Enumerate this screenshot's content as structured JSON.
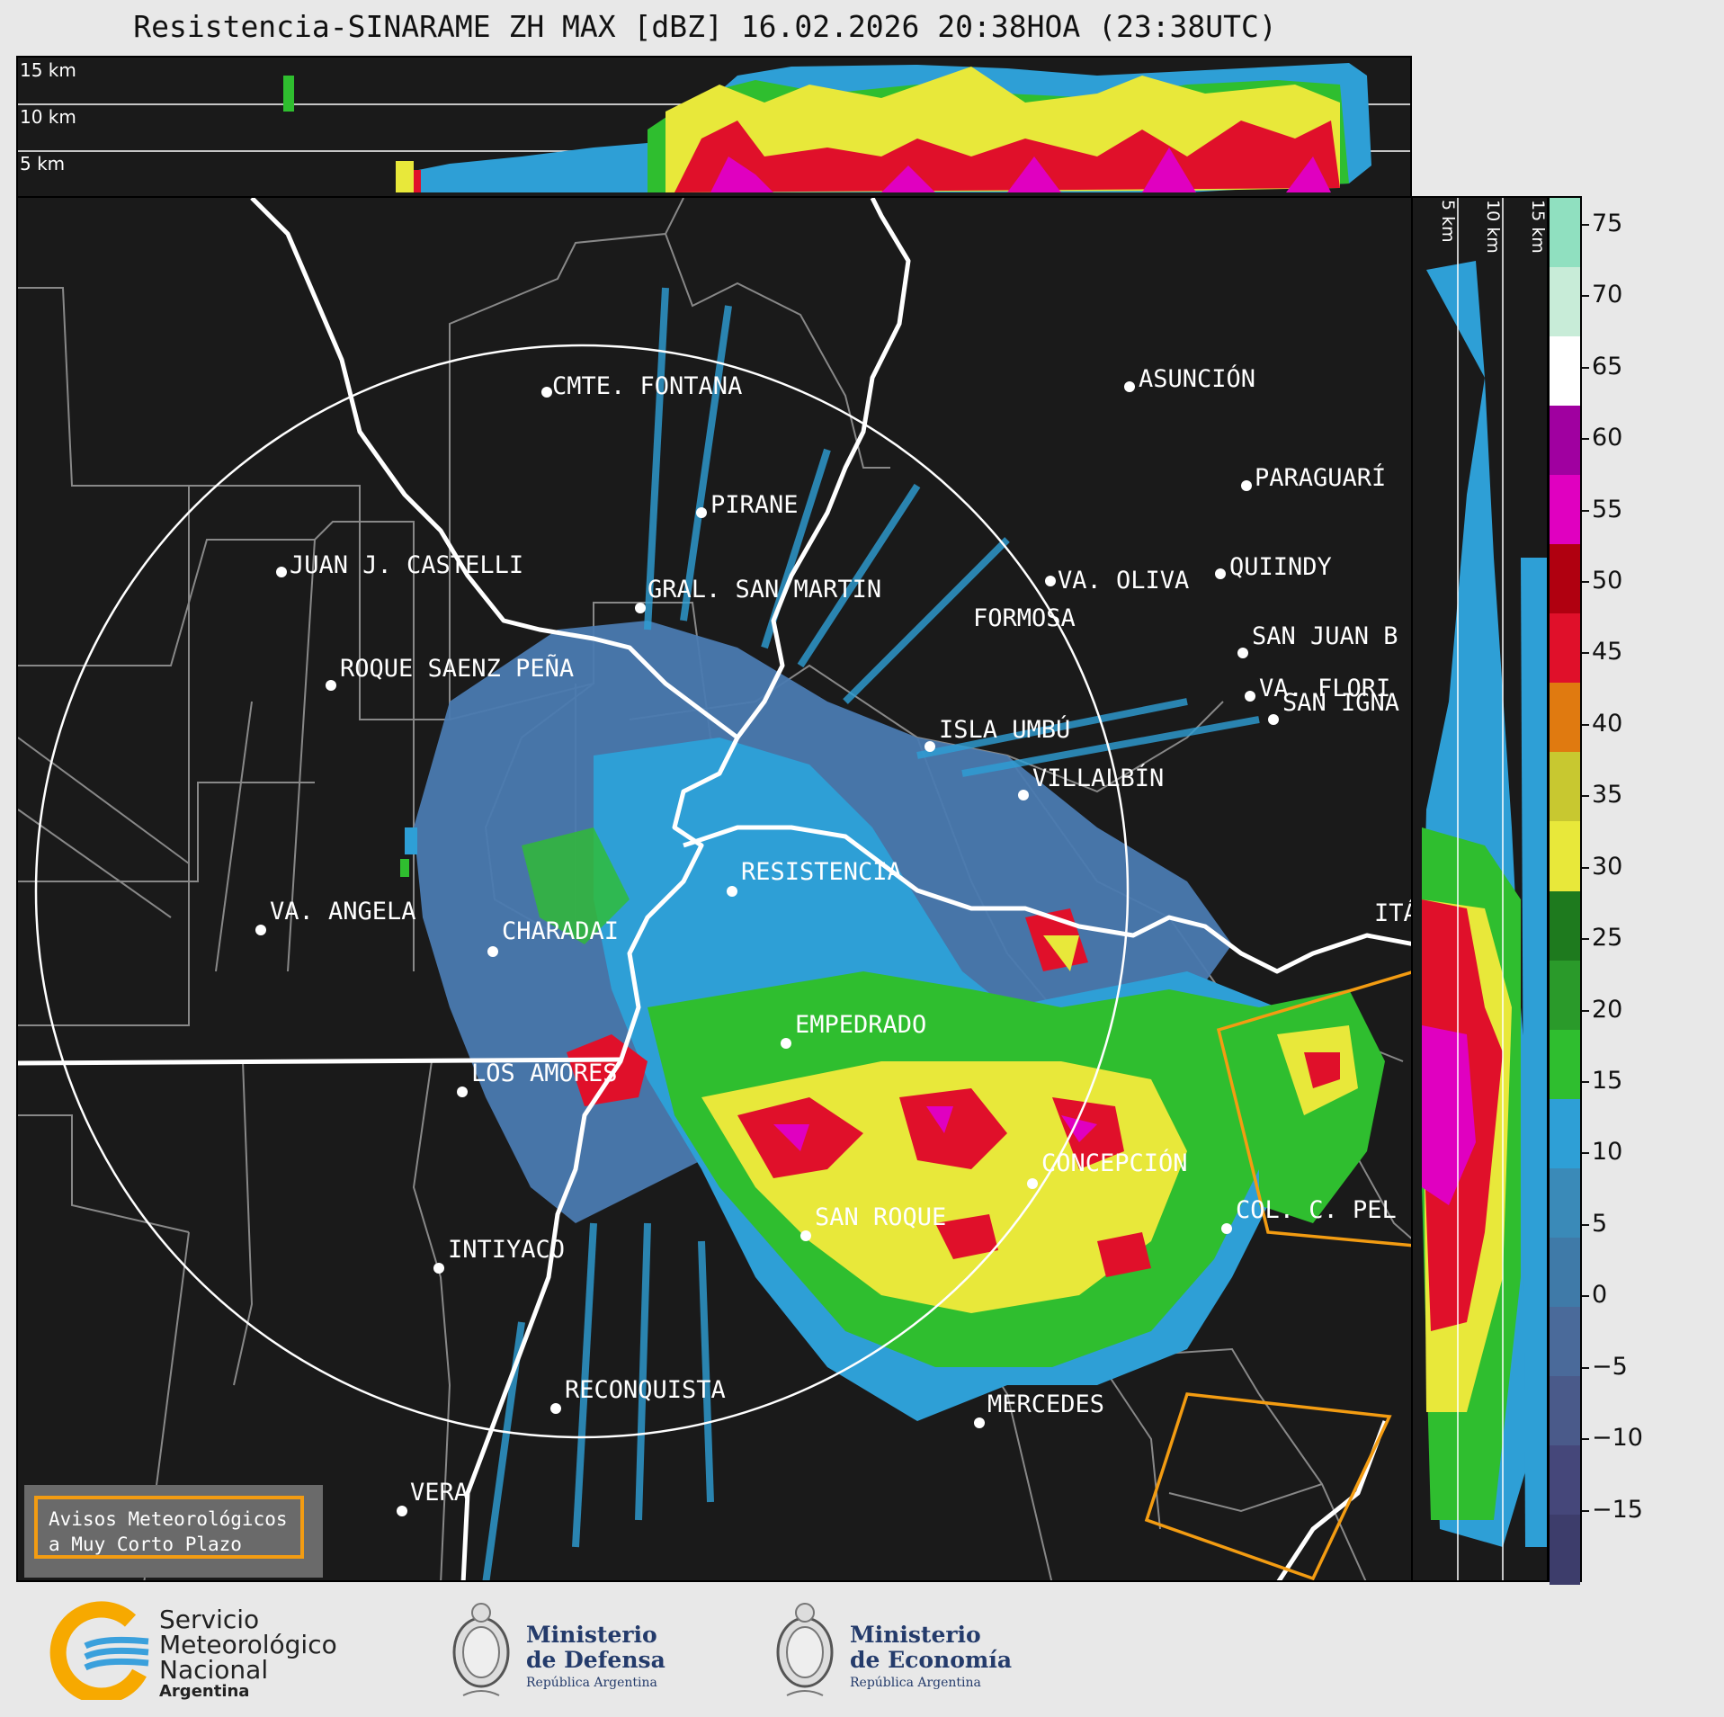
{
  "title": "Resistencia-SINARAME ZH MAX [dBZ] 16.02.2026 20:38HOA (23:38UTC)",
  "top_section": {
    "altitude_labels": [
      "15 km",
      "10 km",
      "5 km"
    ]
  },
  "side_section": {
    "altitude_labels": [
      "5 km",
      "10 km",
      "15 km"
    ]
  },
  "cities": [
    {
      "name": "CMTE. FONTANA"
    },
    {
      "name": "ASUNCIÓN"
    },
    {
      "name": "PIRANE"
    },
    {
      "name": "PARAGUARÍ"
    },
    {
      "name": "JUAN J. CASTELLI"
    },
    {
      "name": "VA. OLIVA"
    },
    {
      "name": "QUIINDY"
    },
    {
      "name": "FORMOSA"
    },
    {
      "name": "VA. FLORI"
    },
    {
      "name": "GRAL. SAN MARTIN"
    },
    {
      "name": "SAN JUAN B"
    },
    {
      "name": "ROQUE SAENZ PEÑA"
    },
    {
      "name": "SAN IGNA"
    },
    {
      "name": "ISLA UMBÚ"
    },
    {
      "name": "VILLALBÍN"
    },
    {
      "name": "RESISTENCIA"
    },
    {
      "name": "VA. ANGELA"
    },
    {
      "name": "CHARADAI"
    },
    {
      "name": "ITÁ"
    },
    {
      "name": "EMPEDRADO"
    },
    {
      "name": "LOS AMORES"
    },
    {
      "name": "CONCEPCIÓN"
    },
    {
      "name": "SAN ROQUE"
    },
    {
      "name": "COL. C. PEL"
    },
    {
      "name": "INTIYACO"
    },
    {
      "name": "RECONQUISTA"
    },
    {
      "name": "MERCEDES"
    },
    {
      "name": "VERA"
    }
  ],
  "colorbar": {
    "unit": "dBZ",
    "min": -20,
    "max": 77,
    "ticks": [
      75,
      70,
      65,
      60,
      55,
      50,
      45,
      40,
      35,
      30,
      25,
      20,
      15,
      10,
      5,
      0,
      -5,
      -10,
      -15
    ],
    "tick_labels": [
      "75",
      "70",
      "65",
      "60",
      "55",
      "50",
      "45",
      "40",
      "35",
      "30",
      "25",
      "20",
      "15",
      "10",
      "5",
      "0",
      "−5",
      "−10",
      "−15"
    ],
    "colors": [
      "#3d3d6b",
      "#45477a",
      "#4a5a8a",
      "#4a6a9a",
      "#3f7aa8",
      "#3a8ab8",
      "#2e9fd6",
      "#2fbe2f",
      "#2a9a2a",
      "#1e7a1e",
      "#e8e83a",
      "#c8c830",
      "#e07a10",
      "#e0102a",
      "#b00010",
      "#e000c0",
      "#a000a0",
      "#ffffff",
      "#c8ecd8",
      "#90e0c0"
    ]
  },
  "warning": {
    "line1": "Avisos Meteorológicos",
    "line2": "a Muy Corto Plazo"
  },
  "logos": {
    "smn": {
      "line1": "Servicio",
      "line2": "Meteorológico",
      "line3": "Nacional",
      "line4": "Argentina"
    },
    "defensa": {
      "line1": "Ministerio",
      "line2": "de Defensa",
      "line3": "República Argentina"
    },
    "economia": {
      "line1": "Ministerio",
      "line2": "de Economía",
      "line3": "República Argentina"
    }
  }
}
